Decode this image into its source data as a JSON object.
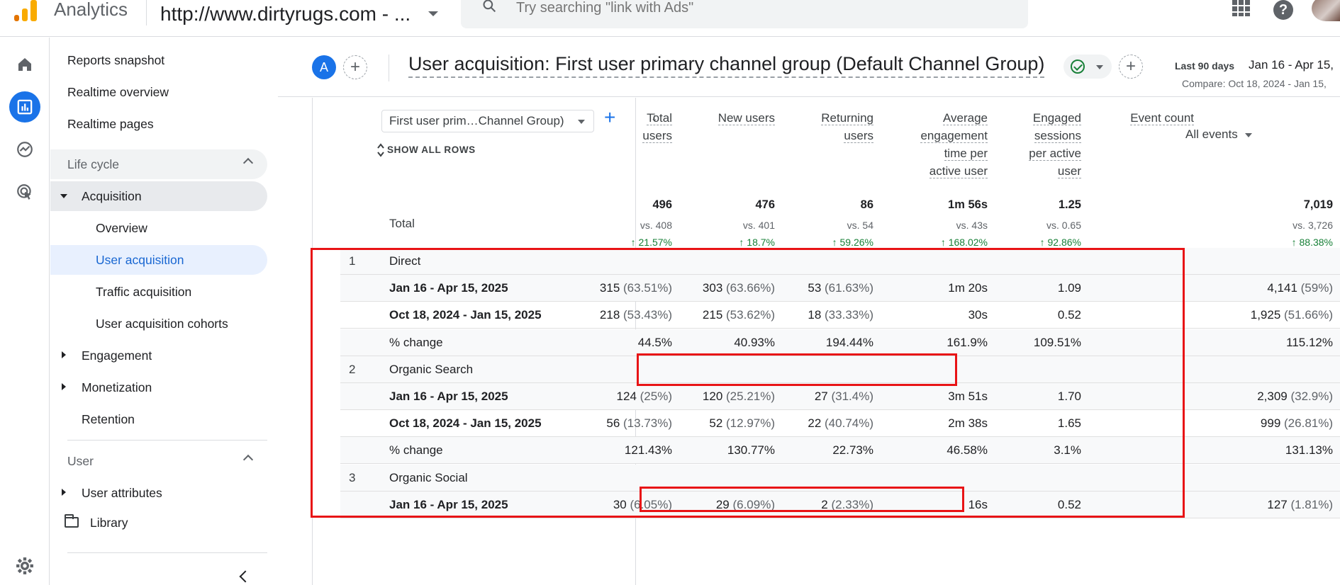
{
  "topbar": {
    "app_title": "Analytics",
    "property": "http://www.dirtyrugs.com - ...",
    "search_placeholder": "Try searching \"link with Ads\""
  },
  "nav": {
    "reports_snapshot": "Reports snapshot",
    "realtime_overview": "Realtime overview",
    "realtime_pages": "Realtime pages",
    "lifecycle": "Life cycle",
    "acquisition": "Acquisition",
    "overview": "Overview",
    "user_acquisition": "User acquisition",
    "traffic_acquisition": "Traffic acquisition",
    "user_acquisition_cohorts": "User acquisition cohorts",
    "engagement": "Engagement",
    "monetization": "Monetization",
    "retention": "Retention",
    "user": "User",
    "user_attributes": "User attributes",
    "library": "Library"
  },
  "header": {
    "comparison_badge": "A",
    "add_comparison": "+",
    "title": "User acquisition: First user primary channel group (Default Channel Group)",
    "add": "+",
    "date_label": "Last 90 days",
    "date_range": "Jan 16 - Apr 15,",
    "compare": "Compare: Oct 18, 2024 - Jan 15,"
  },
  "table": {
    "dimension": "First user prim…Channel Group)",
    "add_dimension": "+",
    "show_all_rows": "SHOW ALL ROWS",
    "sort_arrow": "↓",
    "columns": {
      "total_users": [
        "Total",
        "users"
      ],
      "new_users": [
        "New users"
      ],
      "returning_users": [
        "Returning",
        "users"
      ],
      "avg_engagement": [
        "Average",
        "engagement",
        "time per",
        "active user"
      ],
      "engaged_sessions": [
        "Engaged",
        "sessions",
        "per active",
        "user"
      ],
      "event_count": [
        "Event count"
      ],
      "event_filter": "All events"
    },
    "total": {
      "label": "Total",
      "values": [
        "496",
        "476",
        "86",
        "1m 56s",
        "1.25",
        "7,019"
      ],
      "vs": [
        "vs. 408",
        "vs. 401",
        "vs. 54",
        "vs. 43s",
        "vs. 0.65",
        "vs. 3,726"
      ],
      "pct": [
        "↑ 21.57%",
        "↑ 18.7%",
        "↑ 59.26%",
        "↑ 168.02%",
        "↑ 92.86%",
        "↑ 88.38%"
      ]
    },
    "rows": [
      {
        "num": "1",
        "label": "Direct",
        "type": "group",
        "cells": []
      },
      {
        "num": "",
        "label": "Jan 16 - Apr 15, 2025",
        "type": "data",
        "cells": [
          [
            "315",
            " (63.51%)"
          ],
          [
            "303",
            " (63.66%)"
          ],
          [
            "53",
            " (61.63%)"
          ],
          [
            "1m 20s",
            ""
          ],
          [
            "1.09",
            ""
          ],
          [
            "4,141",
            " (59%)"
          ]
        ]
      },
      {
        "num": "",
        "label": "Oct 18, 2024 - Jan 15, 2025",
        "type": "data",
        "cells": [
          [
            "218",
            " (53.43%)"
          ],
          [
            "215",
            " (53.62%)"
          ],
          [
            "18",
            " (33.33%)"
          ],
          [
            "30s",
            ""
          ],
          [
            "0.52",
            ""
          ],
          [
            "1,925",
            " (51.66%)"
          ]
        ]
      },
      {
        "num": "",
        "label": "% change",
        "type": "change",
        "cells": [
          [
            "44.5%",
            ""
          ],
          [
            "40.93%",
            ""
          ],
          [
            "194.44%",
            ""
          ],
          [
            "161.9%",
            ""
          ],
          [
            "109.51%",
            ""
          ],
          [
            "115.12%",
            ""
          ]
        ]
      },
      {
        "num": "2",
        "label": "Organic Search",
        "type": "group",
        "cells": []
      },
      {
        "num": "",
        "label": "Jan 16 - Apr 15, 2025",
        "type": "data",
        "cells": [
          [
            "124",
            " (25%)"
          ],
          [
            "120",
            " (25.21%)"
          ],
          [
            "27",
            " (31.4%)"
          ],
          [
            "3m 51s",
            ""
          ],
          [
            "1.70",
            ""
          ],
          [
            "2,309",
            " (32.9%)"
          ]
        ]
      },
      {
        "num": "",
        "label": "Oct 18, 2024 - Jan 15, 2025",
        "type": "data",
        "cells": [
          [
            "56",
            " (13.73%)"
          ],
          [
            "52",
            " (12.97%)"
          ],
          [
            "22",
            " (40.74%)"
          ],
          [
            "2m 38s",
            ""
          ],
          [
            "1.65",
            ""
          ],
          [
            "999",
            " (26.81%)"
          ]
        ]
      },
      {
        "num": "",
        "label": "% change",
        "type": "change",
        "cells": [
          [
            "121.43%",
            ""
          ],
          [
            "130.77%",
            ""
          ],
          [
            "22.73%",
            ""
          ],
          [
            "46.58%",
            ""
          ],
          [
            "3.1%",
            ""
          ],
          [
            "131.13%",
            ""
          ]
        ]
      },
      {
        "num": "3",
        "label": "Organic Social",
        "type": "group",
        "cells": []
      },
      {
        "num": "",
        "label": "Jan 16 - Apr 15, 2025",
        "type": "data",
        "cells": [
          [
            "30",
            " (6.05%)"
          ],
          [
            "29",
            " (6.09%)"
          ],
          [
            "2",
            " (2.33%)"
          ],
          [
            "16s",
            ""
          ],
          [
            "0.52",
            ""
          ],
          [
            "127",
            " (1.81%)"
          ]
        ]
      }
    ]
  },
  "colors": {
    "accent": "#1a73e8",
    "highlight": "#e81416",
    "positive": "#188038"
  }
}
